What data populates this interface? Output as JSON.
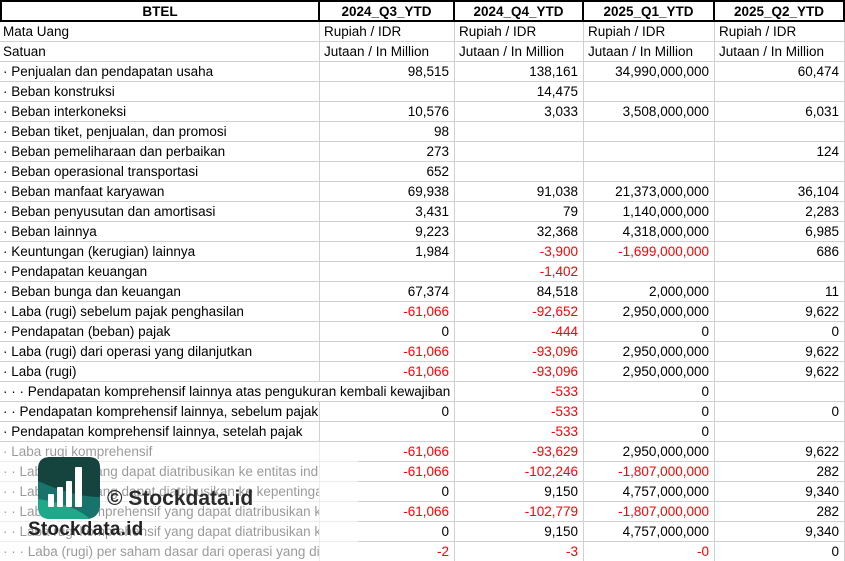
{
  "header": {
    "company": "BTEL",
    "periods": [
      "2024_Q3_YTD",
      "2024_Q4_YTD",
      "2025_Q1_YTD",
      "2025_Q2_YTD"
    ]
  },
  "rows": [
    {
      "label": "Mata Uang",
      "text": true,
      "values": [
        "Rupiah / IDR",
        "Rupiah / IDR",
        "Rupiah / IDR",
        "Rupiah / IDR"
      ]
    },
    {
      "label": "Satuan",
      "text": true,
      "values": [
        "Jutaan / In Million",
        "Jutaan / In Million",
        "Jutaan / In Million",
        "Jutaan / In Million"
      ]
    },
    {
      "label": "· Penjualan dan pendapatan usaha",
      "values": [
        "98,515",
        "138,161",
        "34,990,000,000",
        "60,474"
      ]
    },
    {
      "label": "· Beban konstruksi",
      "values": [
        "",
        "14,475",
        "",
        ""
      ]
    },
    {
      "label": "· Beban interkoneksi",
      "values": [
        "10,576",
        "3,033",
        "3,508,000,000",
        "6,031"
      ]
    },
    {
      "label": "· Beban tiket, penjualan, dan promosi",
      "values": [
        "98",
        "",
        "",
        ""
      ]
    },
    {
      "label": "· Beban pemeliharaan dan perbaikan",
      "values": [
        "273",
        "",
        "",
        "124"
      ]
    },
    {
      "label": "· Beban operasional transportasi",
      "values": [
        "652",
        "",
        "",
        ""
      ]
    },
    {
      "label": "· Beban manfaat karyawan",
      "values": [
        "69,938",
        "91,038",
        "21,373,000,000",
        "36,104"
      ]
    },
    {
      "label": "· Beban penyusutan dan amortisasi",
      "values": [
        "3,431",
        "79",
        "1,140,000,000",
        "2,283"
      ]
    },
    {
      "label": "· Beban lainnya",
      "values": [
        "9,223",
        "32,368",
        "4,318,000,000",
        "6,985"
      ]
    },
    {
      "label": "· Keuntungan (kerugian) lainnya",
      "values": [
        "1,984",
        "-3,900",
        "-1,699,000,000",
        "686"
      ]
    },
    {
      "label": "· Pendapatan keuangan",
      "values": [
        "",
        "-1,402",
        "",
        ""
      ]
    },
    {
      "label": "· Beban bunga dan keuangan",
      "values": [
        "67,374",
        "84,518",
        "2,000,000",
        "11"
      ]
    },
    {
      "label": "· Laba (rugi) sebelum pajak penghasilan",
      "values": [
        "-61,066",
        "-92,652",
        "2,950,000,000",
        "9,622"
      ]
    },
    {
      "label": "· Pendapatan (beban) pajak",
      "values": [
        "0",
        "-444",
        "0",
        "0"
      ]
    },
    {
      "label": "· Laba (rugi) dari operasi yang dilanjutkan",
      "values": [
        "-61,066",
        "-93,096",
        "2,950,000,000",
        "9,622"
      ]
    },
    {
      "label": "· Laba (rugi)",
      "values": [
        "-61,066",
        "-93,096",
        "2,950,000,000",
        "9,622"
      ]
    },
    {
      "label": "· · · Pendapatan komprehensif lainnya atas pengukuran kembali kewajiban imbalan pasti",
      "overflow": true,
      "values": [
        "",
        "-533",
        "0",
        ""
      ]
    },
    {
      "label": "· · Pendapatan komprehensif lainnya, sebelum pajak",
      "values": [
        "0",
        "-533",
        "0",
        "0"
      ]
    },
    {
      "label": "· Pendapatan komprehensif lainnya, setelah pajak",
      "values": [
        "",
        "-533",
        "0",
        ""
      ]
    },
    {
      "label": "· Laba rugi komprehensif",
      "values": [
        "-61,066",
        "-93,629",
        "2,950,000,000",
        "9,622"
      ]
    },
    {
      "label": "· · Laba (rugi) yang dapat diatribusikan ke entitas induk",
      "values": [
        "-61,066",
        "-102,246",
        "-1,807,000,000",
        "282"
      ]
    },
    {
      "label": "· · Laba (rugi) yang dapat diatribusikan ke kepentingan non-pengendali",
      "values": [
        "0",
        "9,150",
        "4,757,000,000",
        "9,340"
      ]
    },
    {
      "label": "· · Laba rugi komprehensif yang dapat diatribusikan ke entitas induk",
      "values": [
        "-61,066",
        "-102,779",
        "-1,807,000,000",
        "282"
      ]
    },
    {
      "label": "· · Laba rugi komprehensif yang dapat diatribusikan ke kepentingan non-pengendali",
      "values": [
        "0",
        "9,150",
        "4,757,000,000",
        "9,340"
      ]
    },
    {
      "label": "· · · Laba (rugi) per saham dasar dari operasi yang dilanjutkan",
      "values": [
        "-2",
        "-3",
        "-0",
        "0"
      ]
    }
  ],
  "watermark": {
    "wordmark": "Stockdata.id",
    "copyright": "© Stockdata.id"
  },
  "colors": {
    "negative": "#ff0000",
    "gridline": "#d0d0d0",
    "header_border": "#000000",
    "logo_dark": "#15433e",
    "logo_mid": "#17736b",
    "logo_light": "#1fa98b"
  }
}
